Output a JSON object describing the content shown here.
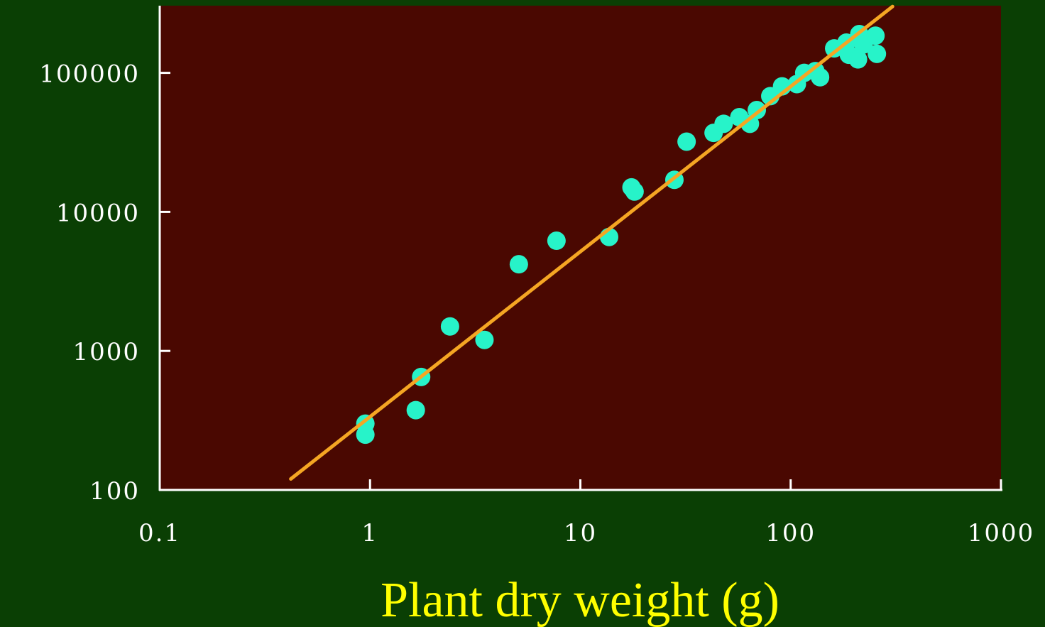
{
  "chart_data": {
    "type": "scatter",
    "title": "",
    "xlabel": "Plant dry weight (g)",
    "ylabel": "",
    "x_scale": "log",
    "y_scale": "log",
    "xlim": [
      0.1,
      1000
    ],
    "ylim": [
      100,
      300000
    ],
    "x_ticks": [
      "0.1",
      "1",
      "10",
      "100",
      "1000"
    ],
    "y_ticks": [
      "100",
      "1000",
      "10000",
      "100000"
    ],
    "grid": false,
    "legend": "none",
    "colors": {
      "page_background": "#0a3f04",
      "plot_background": "#4a0801",
      "points": "#27f3c9",
      "fit_line": "#f5a623",
      "axes": "#ffffff",
      "tick_labels": "#ffffff",
      "xlabel": "#ffff00"
    },
    "series": [
      {
        "points": [
          [
            0.95,
            300
          ],
          [
            0.95,
            250
          ],
          [
            1.65,
            375
          ],
          [
            1.75,
            650
          ],
          [
            2.4,
            1500
          ],
          [
            3.5,
            1200
          ],
          [
            5.1,
            4200
          ],
          [
            7.7,
            6200
          ],
          [
            13.7,
            6600
          ],
          [
            17.5,
            15000
          ],
          [
            18.1,
            14000
          ],
          [
            28,
            17000
          ],
          [
            32,
            32000
          ],
          [
            43,
            37000
          ],
          [
            48,
            43000
          ],
          [
            57,
            48000
          ],
          [
            64,
            43000
          ],
          [
            69,
            54000
          ],
          [
            80,
            68000
          ],
          [
            91,
            80000
          ],
          [
            107,
            83000
          ],
          [
            116,
            100000
          ],
          [
            131,
            103000
          ],
          [
            138,
            93000
          ],
          [
            161,
            150000
          ],
          [
            184,
            165000
          ],
          [
            189,
            135000
          ],
          [
            209,
            125000
          ],
          [
            212,
            190000
          ],
          [
            222,
            160000
          ],
          [
            253,
            185000
          ],
          [
            257,
            137000
          ]
        ]
      }
    ],
    "fit_line": {
      "x": [
        0.42,
        305
      ],
      "y": [
        120,
        300000
      ]
    }
  }
}
